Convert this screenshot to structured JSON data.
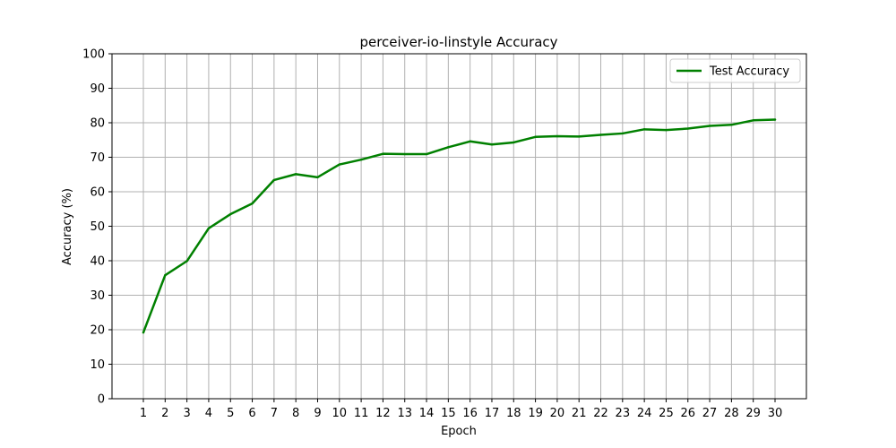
{
  "chart_data": {
    "type": "line",
    "title": "perceiver-io-linstyle Accuracy",
    "xlabel": "Epoch",
    "ylabel": "Accuracy (%)",
    "x": [
      1,
      2,
      3,
      4,
      5,
      6,
      7,
      8,
      9,
      10,
      11,
      12,
      13,
      14,
      15,
      16,
      17,
      18,
      19,
      20,
      21,
      22,
      23,
      24,
      25,
      26,
      27,
      28,
      29,
      30
    ],
    "xticks": [
      "1",
      "2",
      "3",
      "4",
      "5",
      "6",
      "7",
      "8",
      "9",
      "10",
      "11",
      "12",
      "13",
      "14",
      "15",
      "16",
      "17",
      "18",
      "19",
      "20",
      "21",
      "22",
      "23",
      "24",
      "25",
      "26",
      "27",
      "28",
      "29",
      "30"
    ],
    "ylim": [
      0,
      100
    ],
    "yticks": [
      "0",
      "10",
      "20",
      "30",
      "40",
      "50",
      "60",
      "70",
      "80",
      "90",
      "100"
    ],
    "grid": true,
    "legend_position": "top-right",
    "series": [
      {
        "name": "Test Accuracy",
        "color": "#008000",
        "values": [
          19.2,
          35.8,
          39.9,
          49.4,
          53.5,
          56.6,
          63.4,
          65.1,
          64.2,
          67.9,
          69.3,
          71.0,
          70.9,
          70.9,
          72.9,
          74.6,
          73.7,
          74.3,
          75.9,
          76.1,
          76.0,
          76.5,
          76.9,
          78.1,
          77.9,
          78.3,
          79.1,
          79.4,
          80.7,
          80.9
        ]
      }
    ]
  }
}
